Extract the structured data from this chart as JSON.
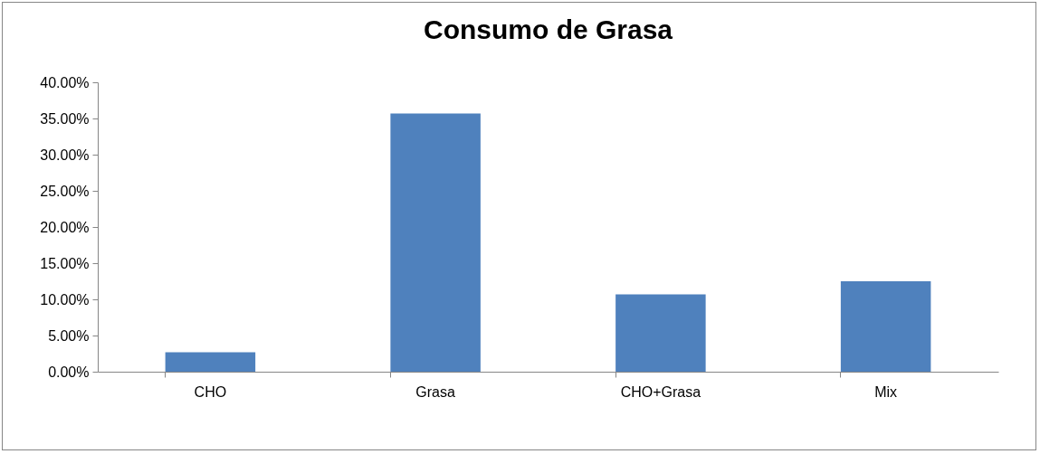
{
  "chart_data": {
    "type": "bar",
    "title": "Consumo de Grasa",
    "categories": [
      "CHO",
      "Grasa",
      "CHO+Grasa",
      "Mix"
    ],
    "values": [
      2.7,
      35.7,
      10.7,
      12.5
    ],
    "color": "#4f81bd",
    "ylim": [
      0,
      40
    ],
    "yticks": [
      {
        "value": 0,
        "label": "0.00%"
      },
      {
        "value": 5,
        "label": "5.00%"
      },
      {
        "value": 10,
        "label": "10.00%"
      },
      {
        "value": 15,
        "label": "15.00%"
      },
      {
        "value": 20,
        "label": "20.00%"
      },
      {
        "value": 25,
        "label": "25.00%"
      },
      {
        "value": 30,
        "label": "30.00%"
      },
      {
        "value": 35,
        "label": "35.00%"
      },
      {
        "value": 40,
        "label": "40.00%"
      }
    ],
    "grid": false
  }
}
